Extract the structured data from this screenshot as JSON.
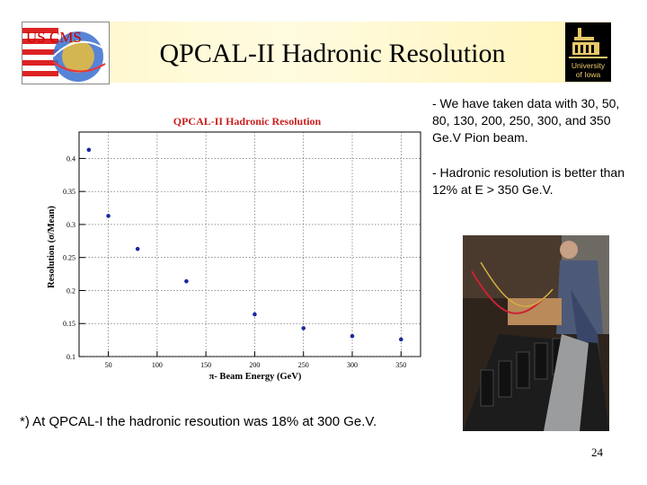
{
  "slide": {
    "title": "QPCAL-II Hadronic Resolution",
    "page_number": "24",
    "footnote": "*) At QPCAL-I the hadronic resoution was 18% at 300 Ge.V."
  },
  "logos": {
    "left": {
      "icon": "us-cms-logo",
      "text": "US CMS"
    },
    "right": {
      "icon": "university-of-iowa-logo",
      "line1": "University",
      "line2": "of Iowa"
    }
  },
  "bullets": [
    "- We have taken data with 30, 50, 80, 130, 200, 250, 300, and 350 Ge.V Pion beam.",
    "- Hadronic resolution is better than 12% at E > 350 Ge.V."
  ],
  "photo": {
    "icon": "detector-photo"
  },
  "chart_data": {
    "type": "scatter",
    "title": "QPCAL-II Hadronic Resolution",
    "xlabel": "π- Beam Energy (GeV)",
    "ylabel": "Resolution (σ/Mean)",
    "xlim": [
      20,
      370
    ],
    "ylim": [
      0.1,
      0.44
    ],
    "xticks": [
      50,
      100,
      150,
      200,
      250,
      300,
      350
    ],
    "xtick_labels": [
      "50",
      "100",
      "150",
      "200",
      "250",
      "300",
      "350"
    ],
    "yticks": [
      0.1,
      0.15,
      0.2,
      0.25,
      0.3,
      0.35,
      0.4
    ],
    "ytick_labels": [
      "0.1",
      "0.15",
      "0.2",
      "0.25",
      "0.3",
      "0.35",
      "0.4"
    ],
    "grid": true,
    "marker_color": "#1a2aa0",
    "points": [
      {
        "x": 30,
        "y": 0.413
      },
      {
        "x": 50,
        "y": 0.313
      },
      {
        "x": 80,
        "y": 0.263
      },
      {
        "x": 130,
        "y": 0.214
      },
      {
        "x": 200,
        "y": 0.164
      },
      {
        "x": 250,
        "y": 0.143
      },
      {
        "x": 300,
        "y": 0.131
      },
      {
        "x": 350,
        "y": 0.126
      }
    ]
  }
}
